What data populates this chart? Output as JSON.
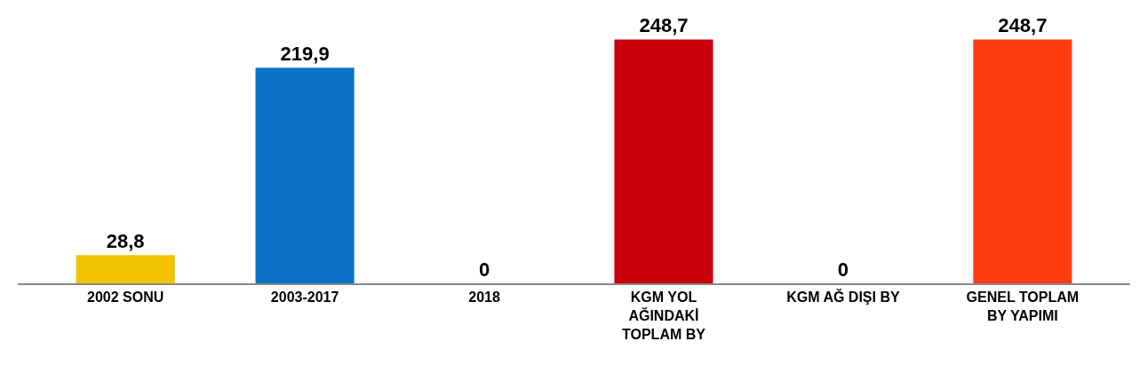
{
  "chart_data": {
    "type": "bar",
    "categories": [
      "2002 SONU",
      "2003-2017",
      "2018",
      "KGM YOL AĞINDAKİ TOPLAM BY",
      "KGM AĞ DIŞI BY",
      "GENEL TOPLAM BY YAPIMI"
    ],
    "values": [
      28.8,
      219.9,
      0,
      248.7,
      0,
      248.7
    ],
    "colors": [
      "#f2c200",
      "#0a72c6",
      "#1d4a2a",
      "#c8000c",
      "#3a1858",
      "#ff3c12"
    ],
    "value_labels": [
      "28,8",
      "219,9",
      "0",
      "248,7",
      "0",
      "248,7"
    ]
  }
}
